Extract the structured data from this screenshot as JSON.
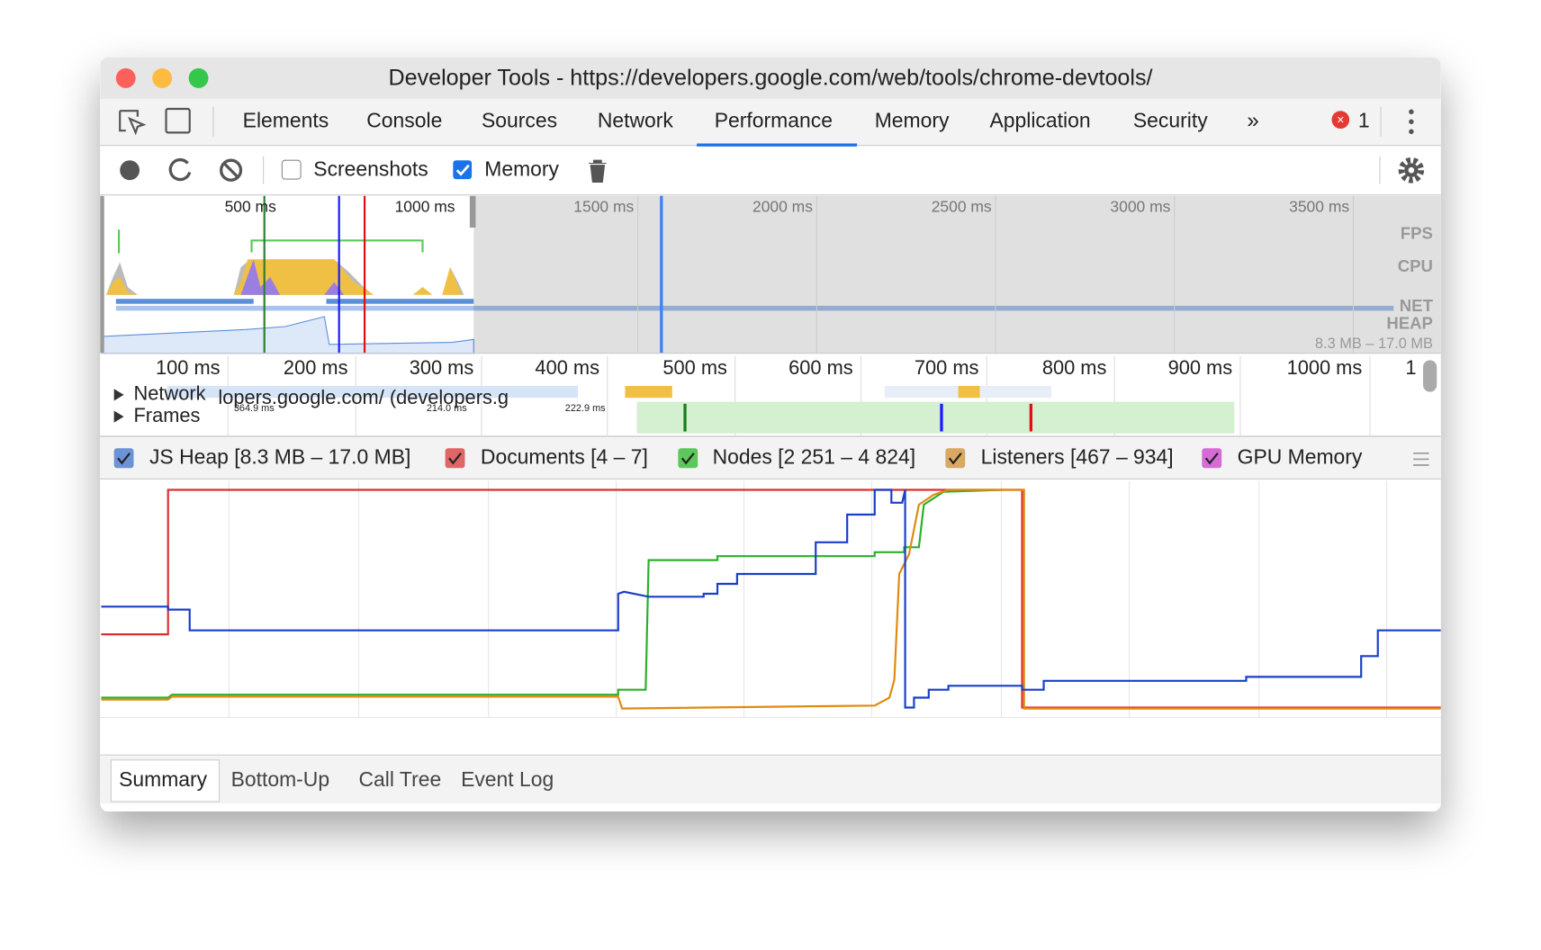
{
  "window": {
    "title": "Developer Tools - https://developers.google.com/web/tools/chrome-devtools/"
  },
  "tabs": [
    "Elements",
    "Console",
    "Sources",
    "Network",
    "Performance",
    "Memory",
    "Application",
    "Security"
  ],
  "error_count": "1",
  "toolbar": {
    "screenshots": "Screenshots",
    "memory": "Memory"
  },
  "overview": {
    "ticks": [
      "500 ms",
      "1000 ms",
      "1500 ms",
      "2000 ms",
      "2500 ms",
      "3000 ms",
      "3500 ms"
    ],
    "lanes": [
      "FPS",
      "CPU",
      "NET",
      "HEAP"
    ],
    "heap_range": "8.3 MB – 17.0 MB"
  },
  "timeline": {
    "ticks": [
      "100 ms",
      "200 ms",
      "300 ms",
      "400 ms",
      "500 ms",
      "600 ms",
      "700 ms",
      "800 ms",
      "900 ms",
      "1000 ms",
      "1"
    ],
    "tracks": [
      "Network",
      "Frames"
    ],
    "network_label": "lopers.google.com/ (developers.g",
    "frame_times": [
      "364.9 ms",
      "214.0 ms",
      "222.9 ms"
    ]
  },
  "counters": [
    "JS Heap [8.3 MB – 17.0 MB]",
    "Documents [4 – 7]",
    "Nodes [2 251 – 4 824]",
    "Listeners [467 – 934]",
    "GPU Memory"
  ],
  "bottom_tabs": [
    "Summary",
    "Bottom-Up",
    "Call Tree",
    "Event Log"
  ]
}
